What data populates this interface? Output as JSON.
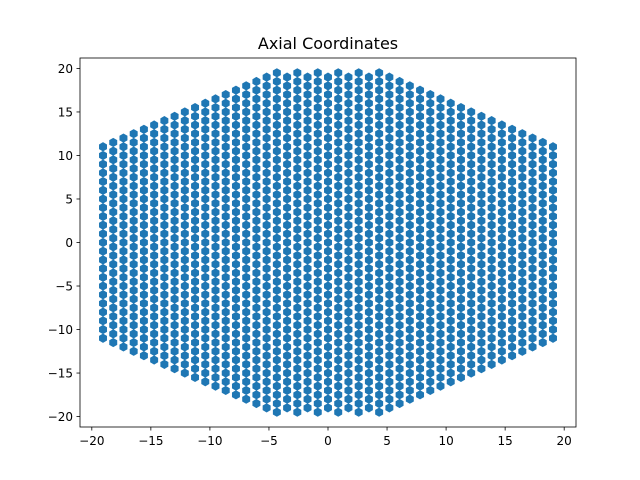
{
  "chart_data": {
    "type": "scatter",
    "title": "Axial Coordinates",
    "xlabel": "",
    "ylabel": "",
    "xlim": [
      -21.0,
      21.0
    ],
    "ylim": [
      -21.2,
      21.2
    ],
    "xticks": [
      -20,
      -15,
      -10,
      -5,
      0,
      5,
      10,
      15,
      20
    ],
    "yticks": [
      -20,
      -15,
      -10,
      -5,
      0,
      5,
      10,
      15,
      20
    ],
    "xtick_labels": [
      "−20",
      "−15",
      "−10",
      "−5",
      "0",
      "5",
      "10",
      "15",
      "20"
    ],
    "ytick_labels": [
      "−20",
      "−15",
      "−10",
      "−5",
      "0",
      "5",
      "10",
      "15",
      "20"
    ],
    "grid": false,
    "marker": "hexagon",
    "series": [
      {
        "color": "#1f77b4",
        "generator": {
          "kind": "hexagonal-region-axial-grid",
          "radius": 22,
          "column_spacing": 0.866,
          "row_spacing": 1.0,
          "x_bounds": [
            -19.1,
            19.1
          ],
          "y_bounds": [
            -19.7,
            19.7
          ]
        }
      }
    ]
  }
}
